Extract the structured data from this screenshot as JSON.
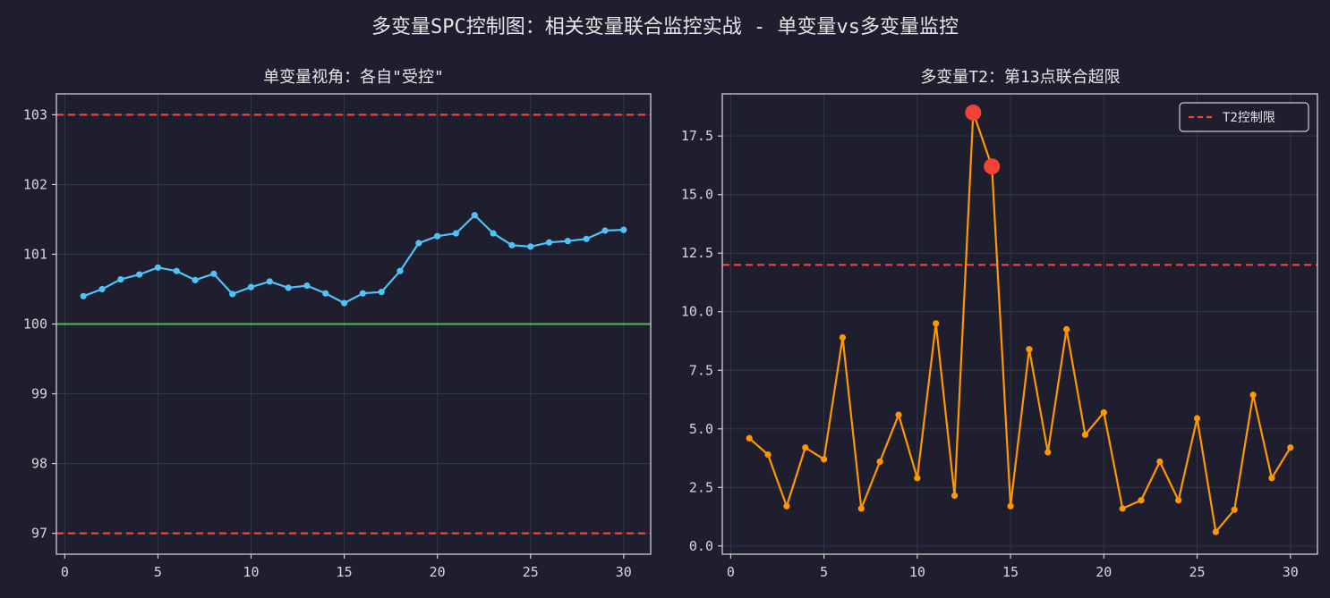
{
  "figure": {
    "suptitle": "多变量SPC控制图：相关变量联合监控实战 - 单变量vs多变量监控",
    "background": "#1e1e2e",
    "axes_edge_color": "#cfcfcf",
    "grid_color": "#33364a"
  },
  "chart_data": [
    {
      "type": "line",
      "title": "单变量视角：各自\"受控\"",
      "xlabel": "",
      "ylabel": "",
      "xlim": [
        -0.45,
        31.45
      ],
      "ylim": [
        96.7,
        103.3
      ],
      "xticks": [
        0,
        5,
        10,
        15,
        20,
        25,
        30
      ],
      "yticks": [
        97,
        98,
        99,
        100,
        101,
        102,
        103
      ],
      "grid": true,
      "legend": null,
      "series": [
        {
          "color": "#4fc3f7",
          "x": [
            1,
            2,
            3,
            4,
            5,
            6,
            7,
            8,
            9,
            10,
            11,
            12,
            13,
            14,
            15,
            16,
            17,
            18,
            19,
            20,
            21,
            22,
            23,
            24,
            25,
            26,
            27,
            28,
            29,
            30
          ],
          "y": [
            100.4,
            100.5,
            100.64,
            100.71,
            100.81,
            100.76,
            100.63,
            100.72,
            100.43,
            100.53,
            100.61,
            100.52,
            100.55,
            100.44,
            100.3,
            100.44,
            100.46,
            100.76,
            101.16,
            101.26,
            101.3,
            101.56,
            101.3,
            101.13,
            101.11,
            101.17,
            101.19,
            101.22,
            101.34,
            101.35
          ]
        }
      ],
      "reference_lines": [
        {
          "y": 103,
          "style": "dashed",
          "color": "#f44336"
        },
        {
          "y": 100,
          "style": "solid",
          "color": "#4caf50"
        },
        {
          "y": 97,
          "style": "dashed",
          "color": "#f44336"
        }
      ]
    },
    {
      "type": "line",
      "title": "多变量T2：第13点联合超限",
      "xlabel": "",
      "ylabel": "",
      "xlim": [
        -0.45,
        31.45
      ],
      "ylim": [
        -0.35,
        19.3
      ],
      "xticks": [
        0,
        5,
        10,
        15,
        20,
        25,
        30
      ],
      "yticks": [
        0.0,
        2.5,
        5.0,
        7.5,
        10.0,
        12.5,
        15.0,
        17.5
      ],
      "ytick_labels": [
        "0.0",
        "2.5",
        "5.0",
        "7.5",
        "10.0",
        "12.5",
        "15.0",
        "17.5"
      ],
      "grid": true,
      "legend": {
        "location": "top-right",
        "entries": [
          "T2控制限"
        ]
      },
      "series": [
        {
          "color": "#ff9800",
          "x": [
            1,
            2,
            3,
            4,
            5,
            6,
            7,
            8,
            9,
            10,
            11,
            12,
            13,
            14,
            15,
            16,
            17,
            18,
            19,
            20,
            21,
            22,
            23,
            24,
            25,
            26,
            27,
            28,
            29,
            30
          ],
          "y": [
            4.6,
            3.9,
            1.7,
            4.2,
            3.7,
            8.9,
            1.6,
            3.6,
            5.6,
            2.9,
            9.5,
            2.15,
            18.5,
            16.2,
            1.7,
            8.4,
            4.0,
            9.25,
            4.75,
            5.7,
            1.6,
            1.95,
            3.6,
            1.95,
            5.45,
            0.6,
            1.55,
            6.45,
            2.9,
            4.2
          ]
        }
      ],
      "highlighted_points": {
        "color": "#f44336",
        "x": [
          13,
          14
        ],
        "y": [
          18.5,
          16.2
        ]
      },
      "reference_lines": [
        {
          "y": 12.0,
          "style": "dashed",
          "color": "#f44336",
          "name": "T2控制限"
        }
      ]
    }
  ]
}
